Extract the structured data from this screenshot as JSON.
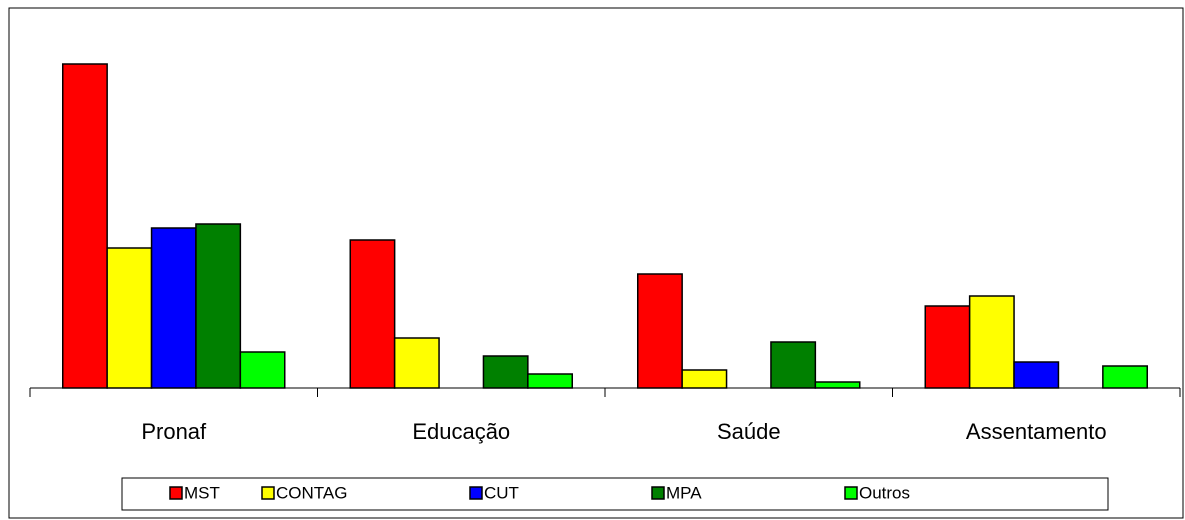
{
  "chart_data": {
    "type": "bar",
    "categories": [
      "Pronaf",
      "Educação",
      "Saúde",
      "Assentamento"
    ],
    "series": [
      {
        "name": "MST",
        "color": "#ff0000",
        "values": [
          81,
          37,
          28.5,
          20.5
        ]
      },
      {
        "name": "CONTAG",
        "color": "#ffff00",
        "values": [
          35,
          12.5,
          4.5,
          23
        ]
      },
      {
        "name": "CUT",
        "color": "#0000ff",
        "values": [
          40,
          0,
          0,
          6.5
        ]
      },
      {
        "name": "MPA",
        "color": "#008000",
        "values": [
          41,
          8,
          11.5,
          0
        ]
      },
      {
        "name": "Outros",
        "color": "#00ff00",
        "values": [
          9,
          3.5,
          1.5,
          5.5
        ]
      }
    ],
    "ylim": [
      0,
      90
    ],
    "legend": "bottom"
  }
}
